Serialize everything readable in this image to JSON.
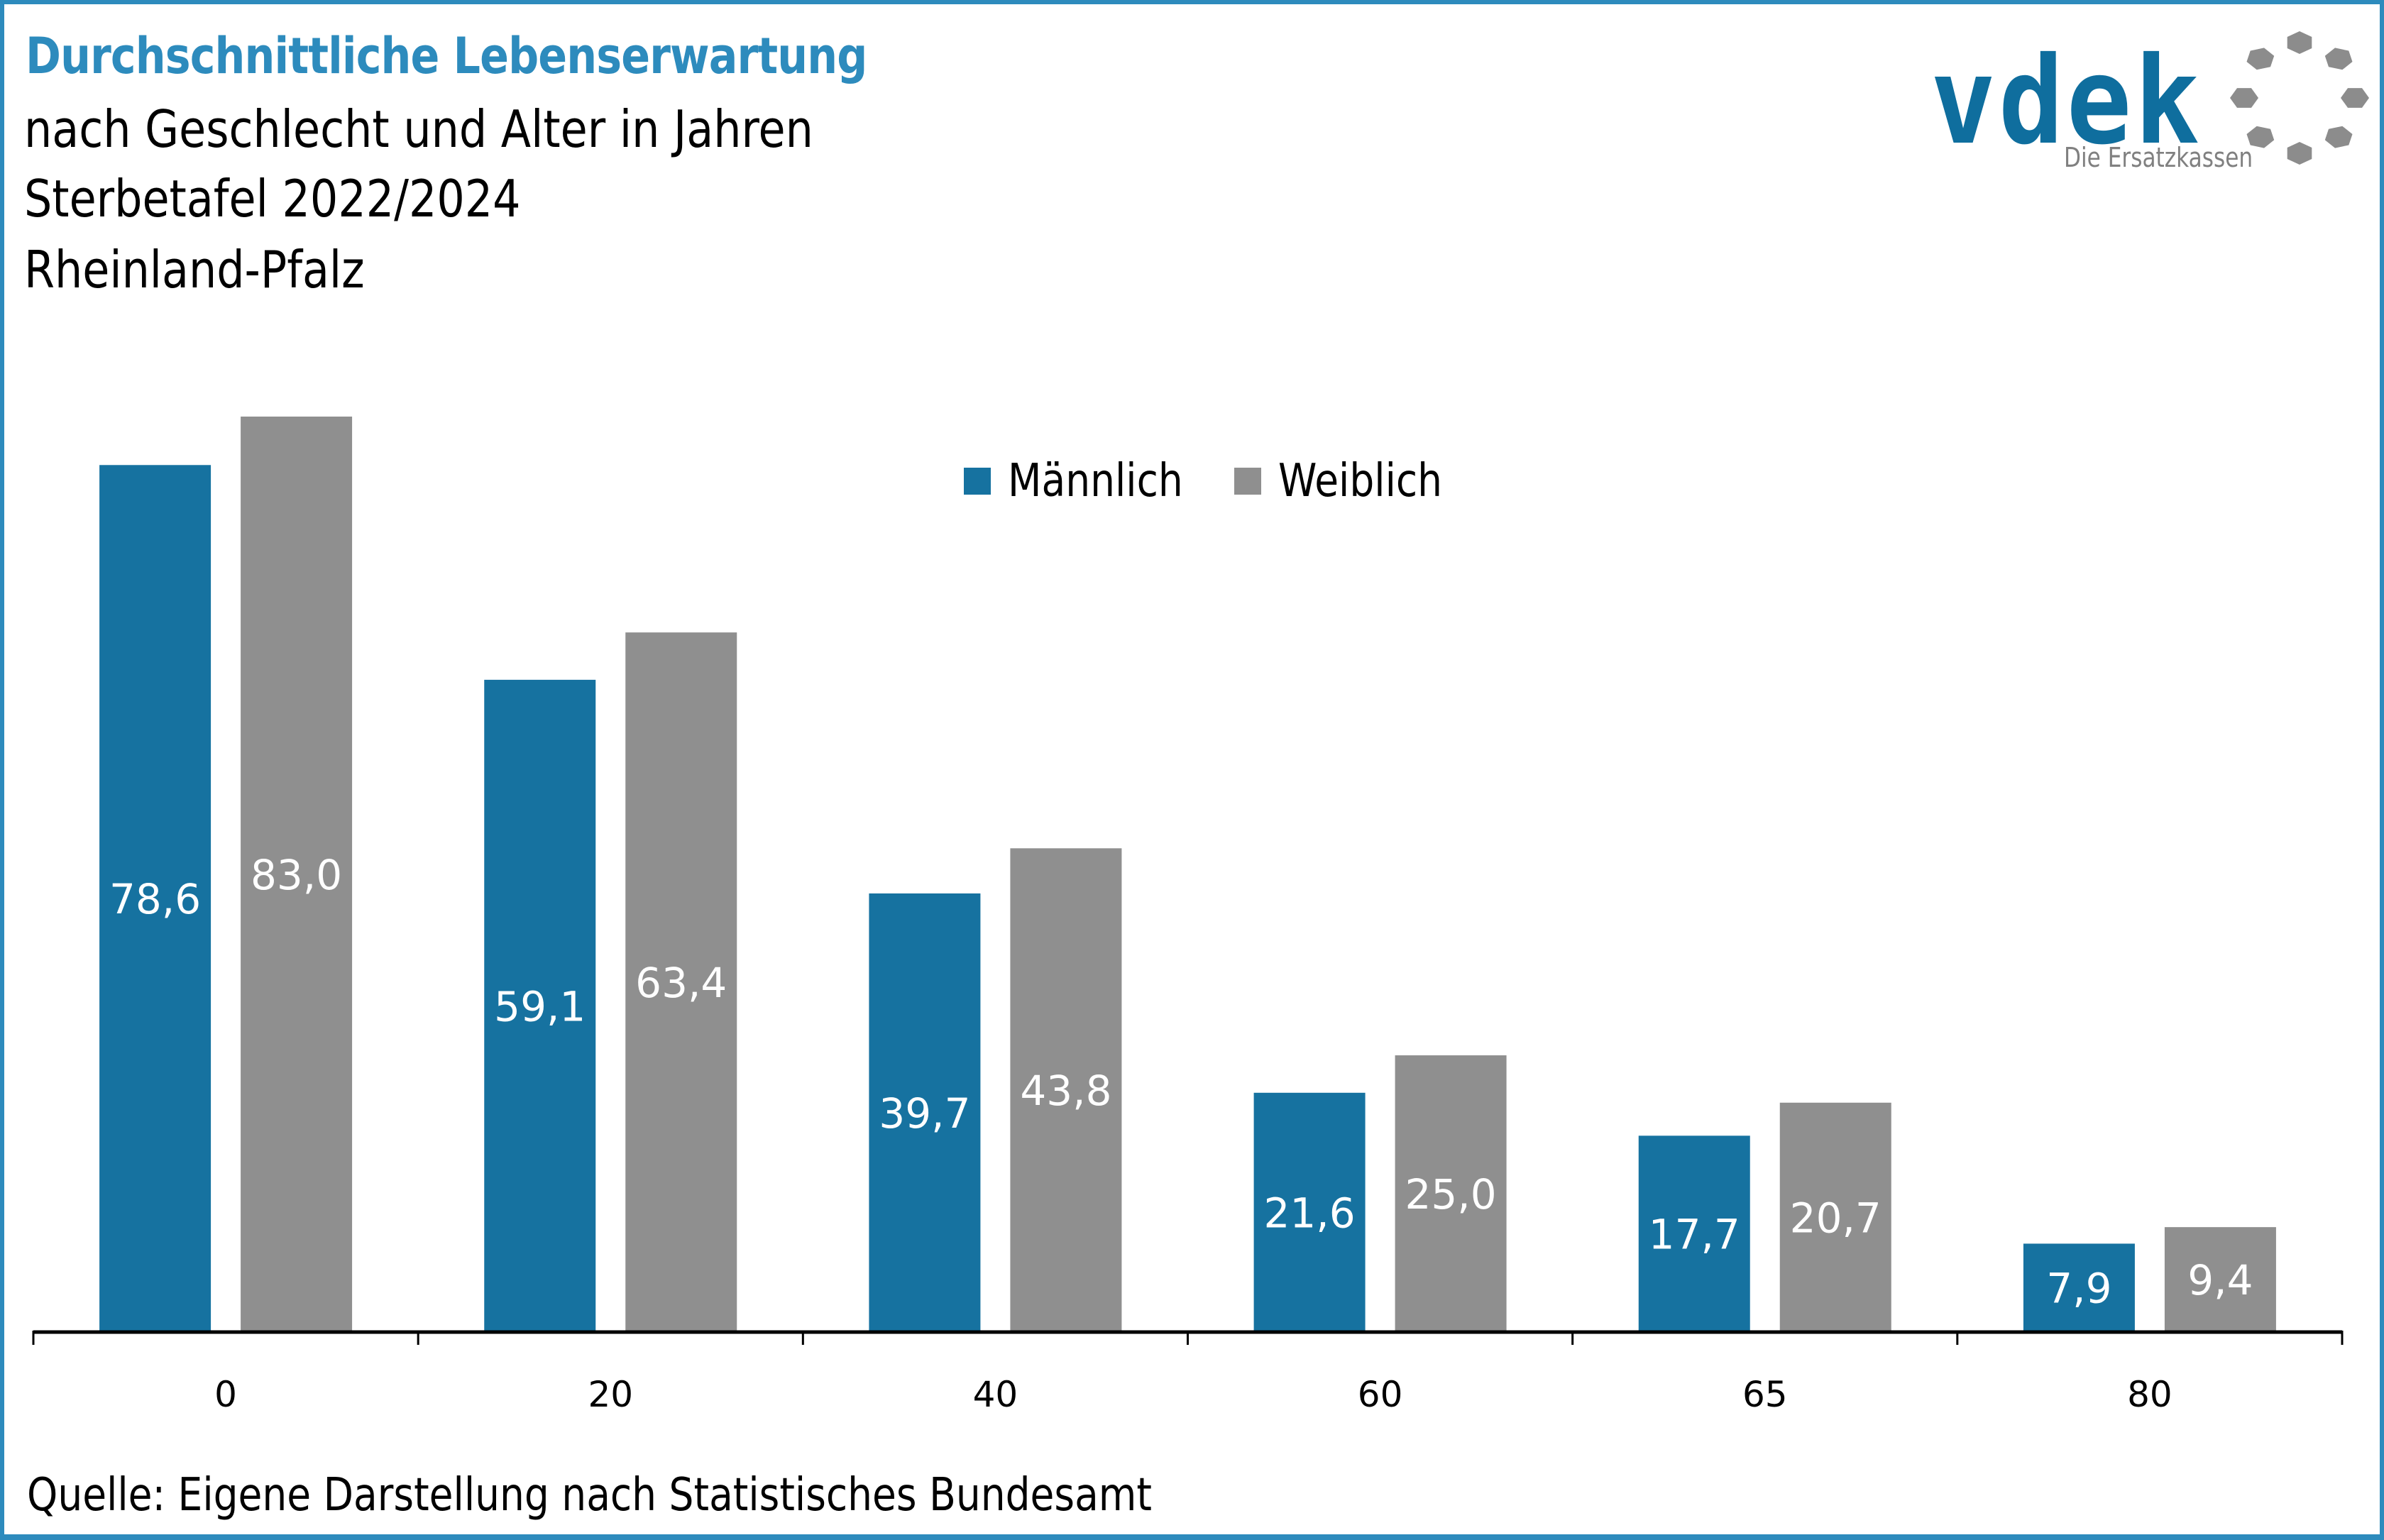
{
  "header": {
    "title": "Durchschnittliche Lebenserwartung",
    "subtitle_lines": [
      "nach Geschlecht und Alter in Jahren",
      "Sterbetafel 2022/2024",
      "Rheinland-Pfalz"
    ]
  },
  "logo": {
    "wordmark": "vdek",
    "tagline": "Die Ersatzkassen",
    "icon": "dotted-ring-icon",
    "colors": {
      "wordmark": "#0f6e9e",
      "ring": "#8c8c8c"
    }
  },
  "colors": {
    "accent": "#2d8bbd",
    "male": "#1672a0",
    "female": "#8f8f8f",
    "label_text": "#ffffff",
    "axis": "#000000"
  },
  "footer": {
    "source": "Quelle: Eigene Darstellung nach Statistisches Bundesamt"
  },
  "chart_data": {
    "type": "bar",
    "title": "Durchschnittliche Lebenserwartung",
    "subtitle": "nach Geschlecht und Alter in Jahren – Sterbetafel 2022/2024 – Rheinland-Pfalz",
    "xlabel": "",
    "ylabel": "",
    "categories": [
      "0",
      "20",
      "40",
      "60",
      "65",
      "80"
    ],
    "series": [
      {
        "name": "Männlich",
        "values": [
          78.6,
          59.1,
          39.7,
          21.6,
          17.7,
          7.9
        ],
        "labels": [
          "78,6",
          "59,1",
          "39,7",
          "21,6",
          "17,7",
          "7,9"
        ]
      },
      {
        "name": "Weiblich",
        "values": [
          83.0,
          63.4,
          43.8,
          25.0,
          20.7,
          9.4
        ],
        "labels": [
          "83,0",
          "63,4",
          "43,8",
          "25,0",
          "20,7",
          "9,4"
        ]
      }
    ],
    "ylim": [
      0,
      83
    ],
    "grid": false,
    "y_axis_visible": false,
    "legend": "top-center",
    "data_labels": "inside-center"
  }
}
